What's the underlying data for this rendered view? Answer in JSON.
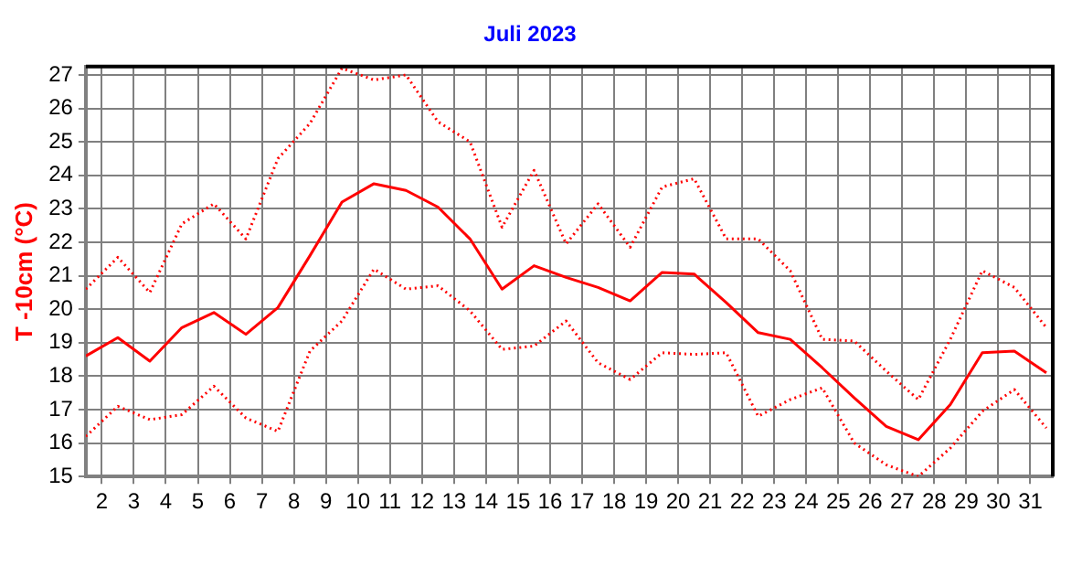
{
  "chart_data": {
    "type": "line",
    "title": "Juli 2023",
    "ylabel": "T -10cm (°C)",
    "x": [
      1.5,
      2.5,
      3.5,
      4.5,
      5.5,
      6.5,
      7.5,
      8.5,
      9.5,
      10.5,
      11.5,
      12.5,
      13.5,
      14.5,
      15.5,
      16.5,
      17.5,
      18.5,
      19.5,
      20.5,
      21.5,
      22.5,
      23.5,
      24.5,
      25.5,
      26.5,
      27.5,
      28.5,
      29.5,
      30.5,
      31.5
    ],
    "series": [
      {
        "color": "#ff0000",
        "line_style": "dotted",
        "values": [
          20.6,
          21.55,
          20.5,
          22.55,
          23.15,
          22.1,
          24.5,
          25.55,
          27.2,
          26.85,
          27.0,
          25.6,
          25.0,
          22.45,
          24.15,
          21.95,
          23.15,
          21.85,
          23.65,
          23.9,
          22.1,
          22.1,
          21.15,
          19.1,
          19.05,
          18.15,
          17.3,
          19.1,
          21.15,
          20.65,
          19.45
        ]
      },
      {
        "color": "#ff0000",
        "line_style": "solid",
        "values": [
          18.6,
          19.15,
          18.45,
          19.45,
          19.9,
          19.25,
          20.05,
          21.6,
          23.2,
          23.75,
          23.55,
          23.05,
          22.1,
          20.6,
          21.3,
          20.95,
          20.65,
          20.25,
          21.1,
          21.05,
          20.2,
          19.3,
          19.1,
          18.25,
          17.35,
          16.5,
          16.1,
          17.15,
          18.7,
          18.75,
          18.1
        ]
      },
      {
        "color": "#ff0000",
        "line_style": "dotted",
        "values": [
          16.2,
          17.1,
          16.7,
          16.85,
          17.7,
          16.75,
          16.35,
          18.75,
          19.65,
          21.2,
          20.6,
          20.7,
          19.95,
          18.8,
          18.9,
          19.65,
          18.4,
          17.9,
          18.7,
          18.65,
          18.7,
          16.8,
          17.3,
          17.65,
          16.0,
          15.35,
          15.0,
          15.85,
          16.95,
          17.6,
          16.45
        ]
      }
    ],
    "xlim": [
      1.5,
      31.7
    ],
    "xticks": [
      2,
      3,
      4,
      5,
      6,
      7,
      8,
      9,
      10,
      11,
      12,
      13,
      14,
      15,
      16,
      17,
      18,
      19,
      20,
      21,
      22,
      23,
      24,
      25,
      26,
      27,
      28,
      29,
      30,
      31
    ],
    "ylim": [
      15,
      27.25
    ],
    "yticks": [
      15,
      16,
      17,
      18,
      19,
      20,
      21,
      22,
      23,
      24,
      25,
      26,
      27
    ],
    "grid": true,
    "legend": false,
    "marker": "none"
  }
}
